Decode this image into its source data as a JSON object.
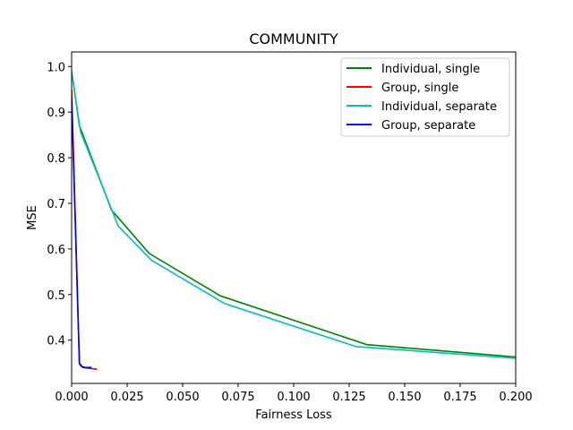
{
  "chart_data": {
    "type": "line",
    "title": "COMMUNITY",
    "xlabel": "Fairness Loss",
    "ylabel": "MSE",
    "xlim": [
      0,
      0.2
    ],
    "ylim": [
      0.305,
      1.032
    ],
    "xticks": [
      0.0,
      0.025,
      0.05,
      0.075,
      0.1,
      0.125,
      0.15,
      0.175,
      0.2
    ],
    "xtick_labels": [
      "0.000",
      "0.025",
      "0.050",
      "0.075",
      "0.100",
      "0.125",
      "0.150",
      "0.175",
      "0.200"
    ],
    "yticks": [
      0.4,
      0.5,
      0.6,
      0.7,
      0.8,
      0.9,
      1.0
    ],
    "ytick_labels": [
      "0.4",
      "0.5",
      "0.6",
      "0.7",
      "0.8",
      "0.9",
      "1.0"
    ],
    "grid": false,
    "legend_position": "top-right",
    "series": [
      {
        "name": "Individual, single",
        "color": "#008000",
        "x": [
          0.0,
          0.0035,
          0.018,
          0.035,
          0.067,
          0.133,
          0.2
        ],
        "y": [
          0.99,
          0.87,
          0.685,
          0.59,
          0.497,
          0.39,
          0.363
        ]
      },
      {
        "name": "Group, single",
        "color": "#ff0000",
        "x": [
          0.0,
          0.0035,
          0.005,
          0.008,
          0.0115
        ],
        "y": [
          0.95,
          0.35,
          0.34,
          0.338,
          0.336
        ]
      },
      {
        "name": "Individual, separate",
        "color": "#00bfbf",
        "x": [
          0.0,
          0.004,
          0.021,
          0.036,
          0.069,
          0.128,
          0.2
        ],
        "y": [
          0.99,
          0.857,
          0.65,
          0.575,
          0.48,
          0.386,
          0.36
        ]
      },
      {
        "name": "Group, separate",
        "color": "#0000ff",
        "x": [
          0.0,
          0.0035,
          0.0045,
          0.006,
          0.009
        ],
        "y": [
          0.93,
          0.348,
          0.342,
          0.34,
          0.34
        ]
      }
    ]
  }
}
